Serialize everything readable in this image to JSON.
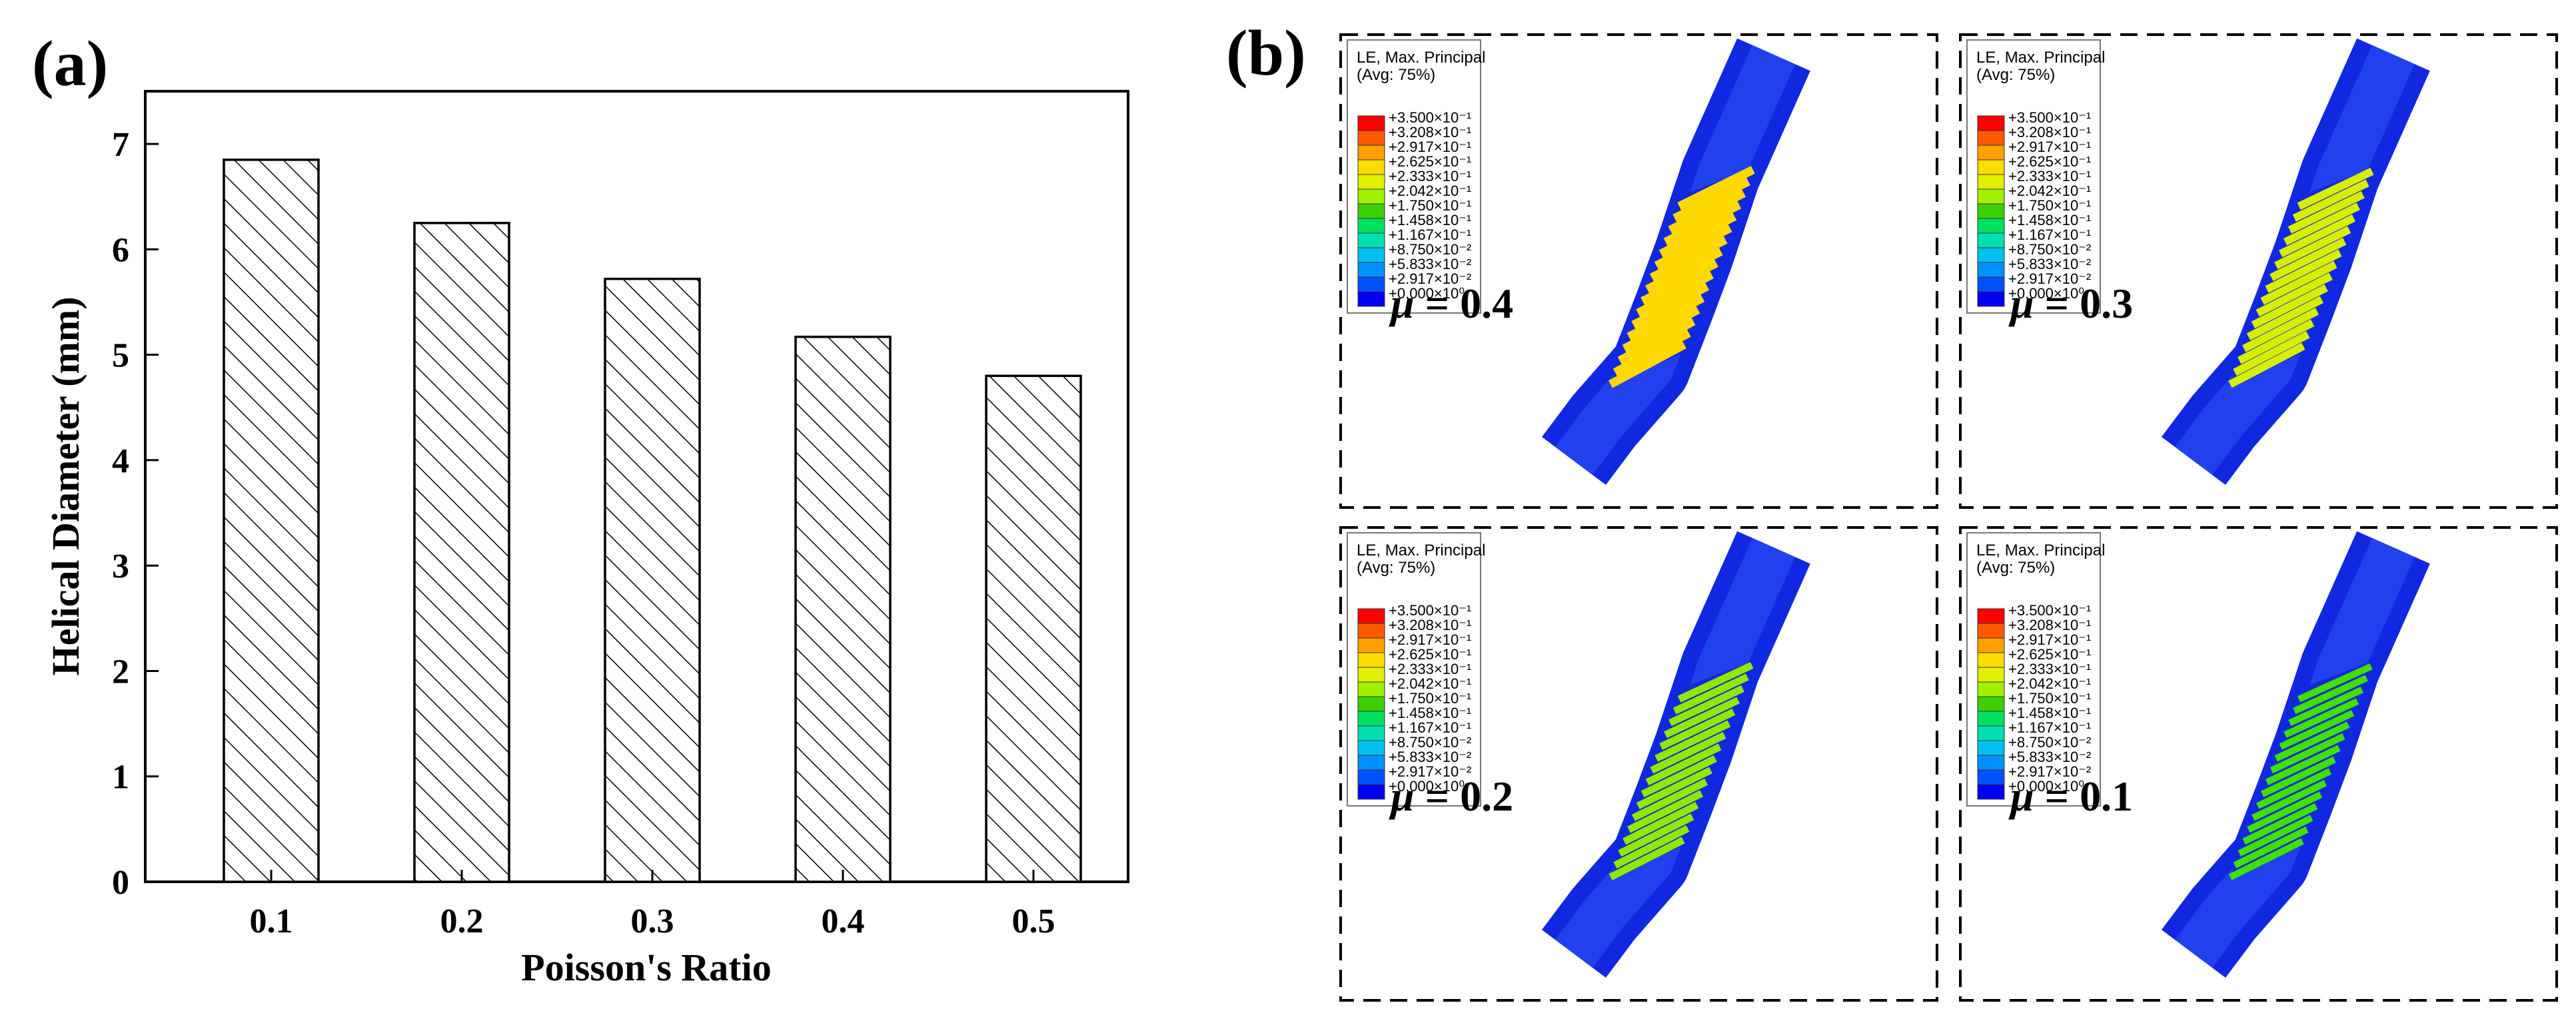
{
  "figure": {
    "panel_a_label": "(a)",
    "panel_b_label": "(b)"
  },
  "chart_data": {
    "type": "bar",
    "title": "",
    "xlabel": "Poisson's Ratio",
    "ylabel": "Helical Diameter (mm)",
    "categories": [
      "0.1",
      "0.2",
      "0.3",
      "0.4",
      "0.5"
    ],
    "values": [
      6.85,
      6.25,
      5.72,
      5.17,
      4.8
    ],
    "ylim": [
      0,
      7.5
    ],
    "yticks": [
      "0",
      "1",
      "2",
      "3",
      "4",
      "5",
      "6",
      "7"
    ],
    "bar_fill": "diagonal hatch",
    "grid": false
  },
  "contour_legend": {
    "title_line1": "LE, Max. Principal",
    "title_line2": "(Avg: 75%)",
    "values": [
      "+3.500×10⁻¹",
      "+3.208×10⁻¹",
      "+2.917×10⁻¹",
      "+2.625×10⁻¹",
      "+2.333×10⁻¹",
      "+2.042×10⁻¹",
      "+1.750×10⁻¹",
      "+1.458×10⁻¹",
      "+1.167×10⁻¹",
      "+8.750×10⁻²",
      "+5.833×10⁻²",
      "+2.917×10⁻²",
      "+0.000×10⁰"
    ],
    "colors": [
      "#ff0000",
      "#ff5a00",
      "#ffa000",
      "#ffdc00",
      "#e0f000",
      "#a0f000",
      "#3cd000",
      "#00e060",
      "#00e0b0",
      "#00c0f0",
      "#0090ff",
      "#0050ff",
      "#0000f0"
    ]
  },
  "simulations": [
    {
      "mu_symbol": "μ",
      "mu_text": " = 0.4",
      "stripe_color": "#ffd800"
    },
    {
      "mu_symbol": "μ",
      "mu_text": " = 0.3",
      "stripe_color": "#d8ee00"
    },
    {
      "mu_symbol": "μ",
      "mu_text": " = 0.2",
      "stripe_color": "#90e800"
    },
    {
      "mu_symbol": "μ",
      "mu_text": " = 0.1",
      "stripe_color": "#40e000"
    }
  ]
}
